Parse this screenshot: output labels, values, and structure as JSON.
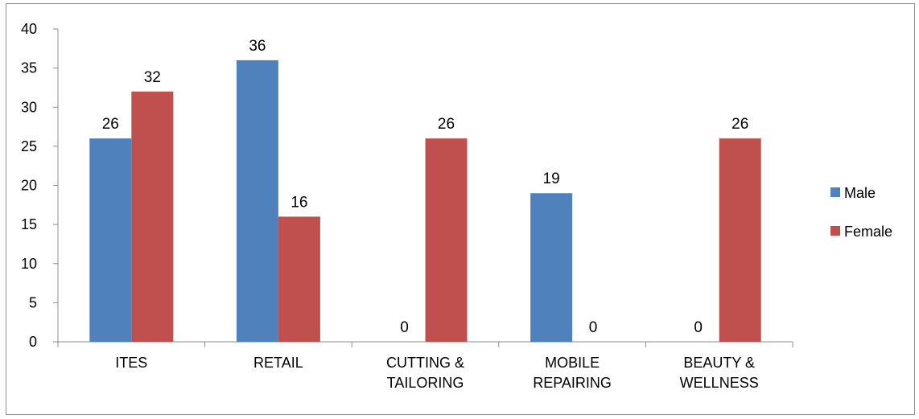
{
  "chart_data": {
    "type": "bar",
    "categories": [
      [
        "ITES"
      ],
      [
        "RETAIL"
      ],
      [
        "CUTTING &",
        "TAILORING"
      ],
      [
        "MOBILE",
        "REPAIRING"
      ],
      [
        "BEAUTY &",
        "WELLNESS"
      ]
    ],
    "series": [
      {
        "name": "Male",
        "color": "#4f81bd",
        "values": [
          26,
          36,
          0,
          19,
          0
        ]
      },
      {
        "name": "Female",
        "color": "#c0504d",
        "values": [
          32,
          16,
          26,
          0,
          26
        ]
      }
    ],
    "ylim": [
      0,
      40
    ],
    "yticks": [
      0,
      5,
      10,
      15,
      20,
      25,
      30,
      35,
      40
    ],
    "grid": false,
    "legend": "right",
    "title": "",
    "xlabel": "",
    "ylabel": ""
  }
}
